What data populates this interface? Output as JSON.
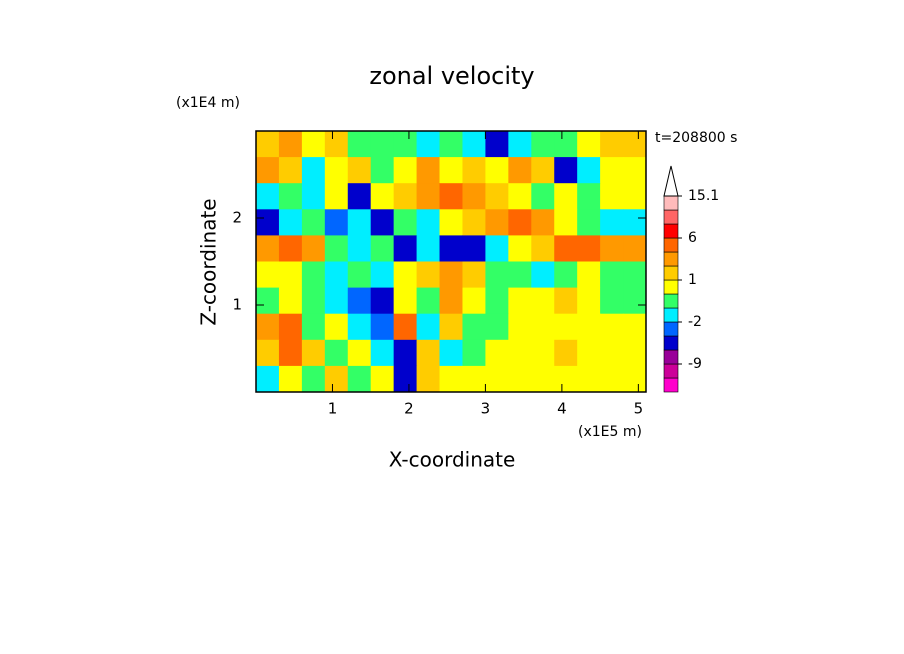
{
  "chart_data": {
    "type": "contour",
    "title": "zonal velocity",
    "x_label": "X-coordinate",
    "y_label": "Z-coordinate",
    "x_unit": "(x1E5 m)",
    "y_unit": "(x1E4 m)",
    "time_label": "t=208800 s",
    "xlim": [
      0,
      5.1
    ],
    "ylim": [
      0,
      3
    ],
    "xticks": [
      1,
      2,
      3,
      4,
      5
    ],
    "yticks": [
      1,
      2
    ],
    "x_edges": [
      0,
      0.3,
      0.6,
      0.9,
      1.2,
      1.5,
      1.8,
      2.1,
      2.4,
      2.7,
      3.0,
      3.3,
      3.6,
      3.9,
      4.2,
      4.5,
      4.8,
      5.1
    ],
    "y_edges": [
      3.0,
      2.7,
      2.4,
      2.1,
      1.8,
      1.5,
      1.2,
      0.9,
      0.6,
      0.3,
      0
    ],
    "z": [
      [
        1,
        2,
        0.5,
        1,
        -0.5,
        -0.5,
        -0.5,
        -1.5,
        -0.5,
        -1.5,
        -4,
        -1.5,
        -0.5,
        -0.5,
        0.5,
        1,
        1
      ],
      [
        2,
        1,
        -1.5,
        0.5,
        1,
        -0.5,
        0.5,
        2,
        0.5,
        1,
        0.5,
        2,
        1,
        -4,
        -1.5,
        0.5,
        0.5
      ],
      [
        -1.5,
        -0.5,
        -1.5,
        0.5,
        -4,
        0.5,
        1,
        2,
        4,
        2,
        1,
        0.5,
        -0.5,
        0.5,
        -0.5,
        0.5,
        0.5
      ],
      [
        -4,
        -1.5,
        -0.5,
        -2.5,
        -1.5,
        -4,
        -0.5,
        -1.5,
        0.5,
        1,
        2,
        4,
        2,
        0.5,
        -0.5,
        -1.5,
        -1.5
      ],
      [
        2,
        4,
        2,
        -0.5,
        -1.5,
        -0.5,
        -4,
        -1.5,
        -4,
        -4,
        -1.5,
        0.5,
        1,
        4,
        4,
        2,
        2
      ],
      [
        0.5,
        0.5,
        -0.5,
        -1.5,
        -0.5,
        -1.5,
        0.5,
        1,
        2,
        1,
        -0.5,
        -0.5,
        -1.5,
        -0.5,
        0.5,
        -0.5,
        -0.5
      ],
      [
        -0.5,
        0.5,
        -0.5,
        -1.5,
        -2.5,
        -4,
        0.5,
        -0.5,
        2,
        0.5,
        -0.5,
        0.5,
        0.5,
        1,
        0.5,
        -0.5,
        -0.5
      ],
      [
        2,
        4,
        -0.5,
        0.5,
        -1.5,
        -2.5,
        4,
        -1.5,
        1,
        -0.5,
        -0.5,
        0.5,
        0.5,
        0.5,
        0.5,
        0.5,
        0.5
      ],
      [
        1,
        4,
        1,
        -0.5,
        0.5,
        -1.5,
        -4,
        1,
        -1.5,
        -0.5,
        0.5,
        0.5,
        0.5,
        1,
        0.5,
        0.5,
        0.5
      ],
      [
        -1.5,
        0.5,
        -0.5,
        1,
        -0.5,
        0.5,
        -4,
        1,
        0.5,
        0.5,
        0.5,
        0.5,
        0.5,
        0.5,
        0.5,
        0.5,
        0.5
      ]
    ],
    "levels": [
      -15,
      -12,
      -9,
      -6,
      -3,
      -2,
      -1,
      0,
      1,
      2,
      3,
      6,
      9,
      12,
      15.1
    ],
    "colors": [
      "#ff00cc",
      "#cc0099",
      "#990099",
      "#0000cc",
      "#0066ff",
      "#00eeff",
      "#33ff66",
      "#ffff00",
      "#ffcc00",
      "#ff9900",
      "#ff6600",
      "#ff0000",
      "#ff6666",
      "#ffbbbb"
    ],
    "over_color": "#ffffff",
    "colorbar_ticks": [
      -9,
      -2,
      1,
      6,
      15.1
    ]
  }
}
